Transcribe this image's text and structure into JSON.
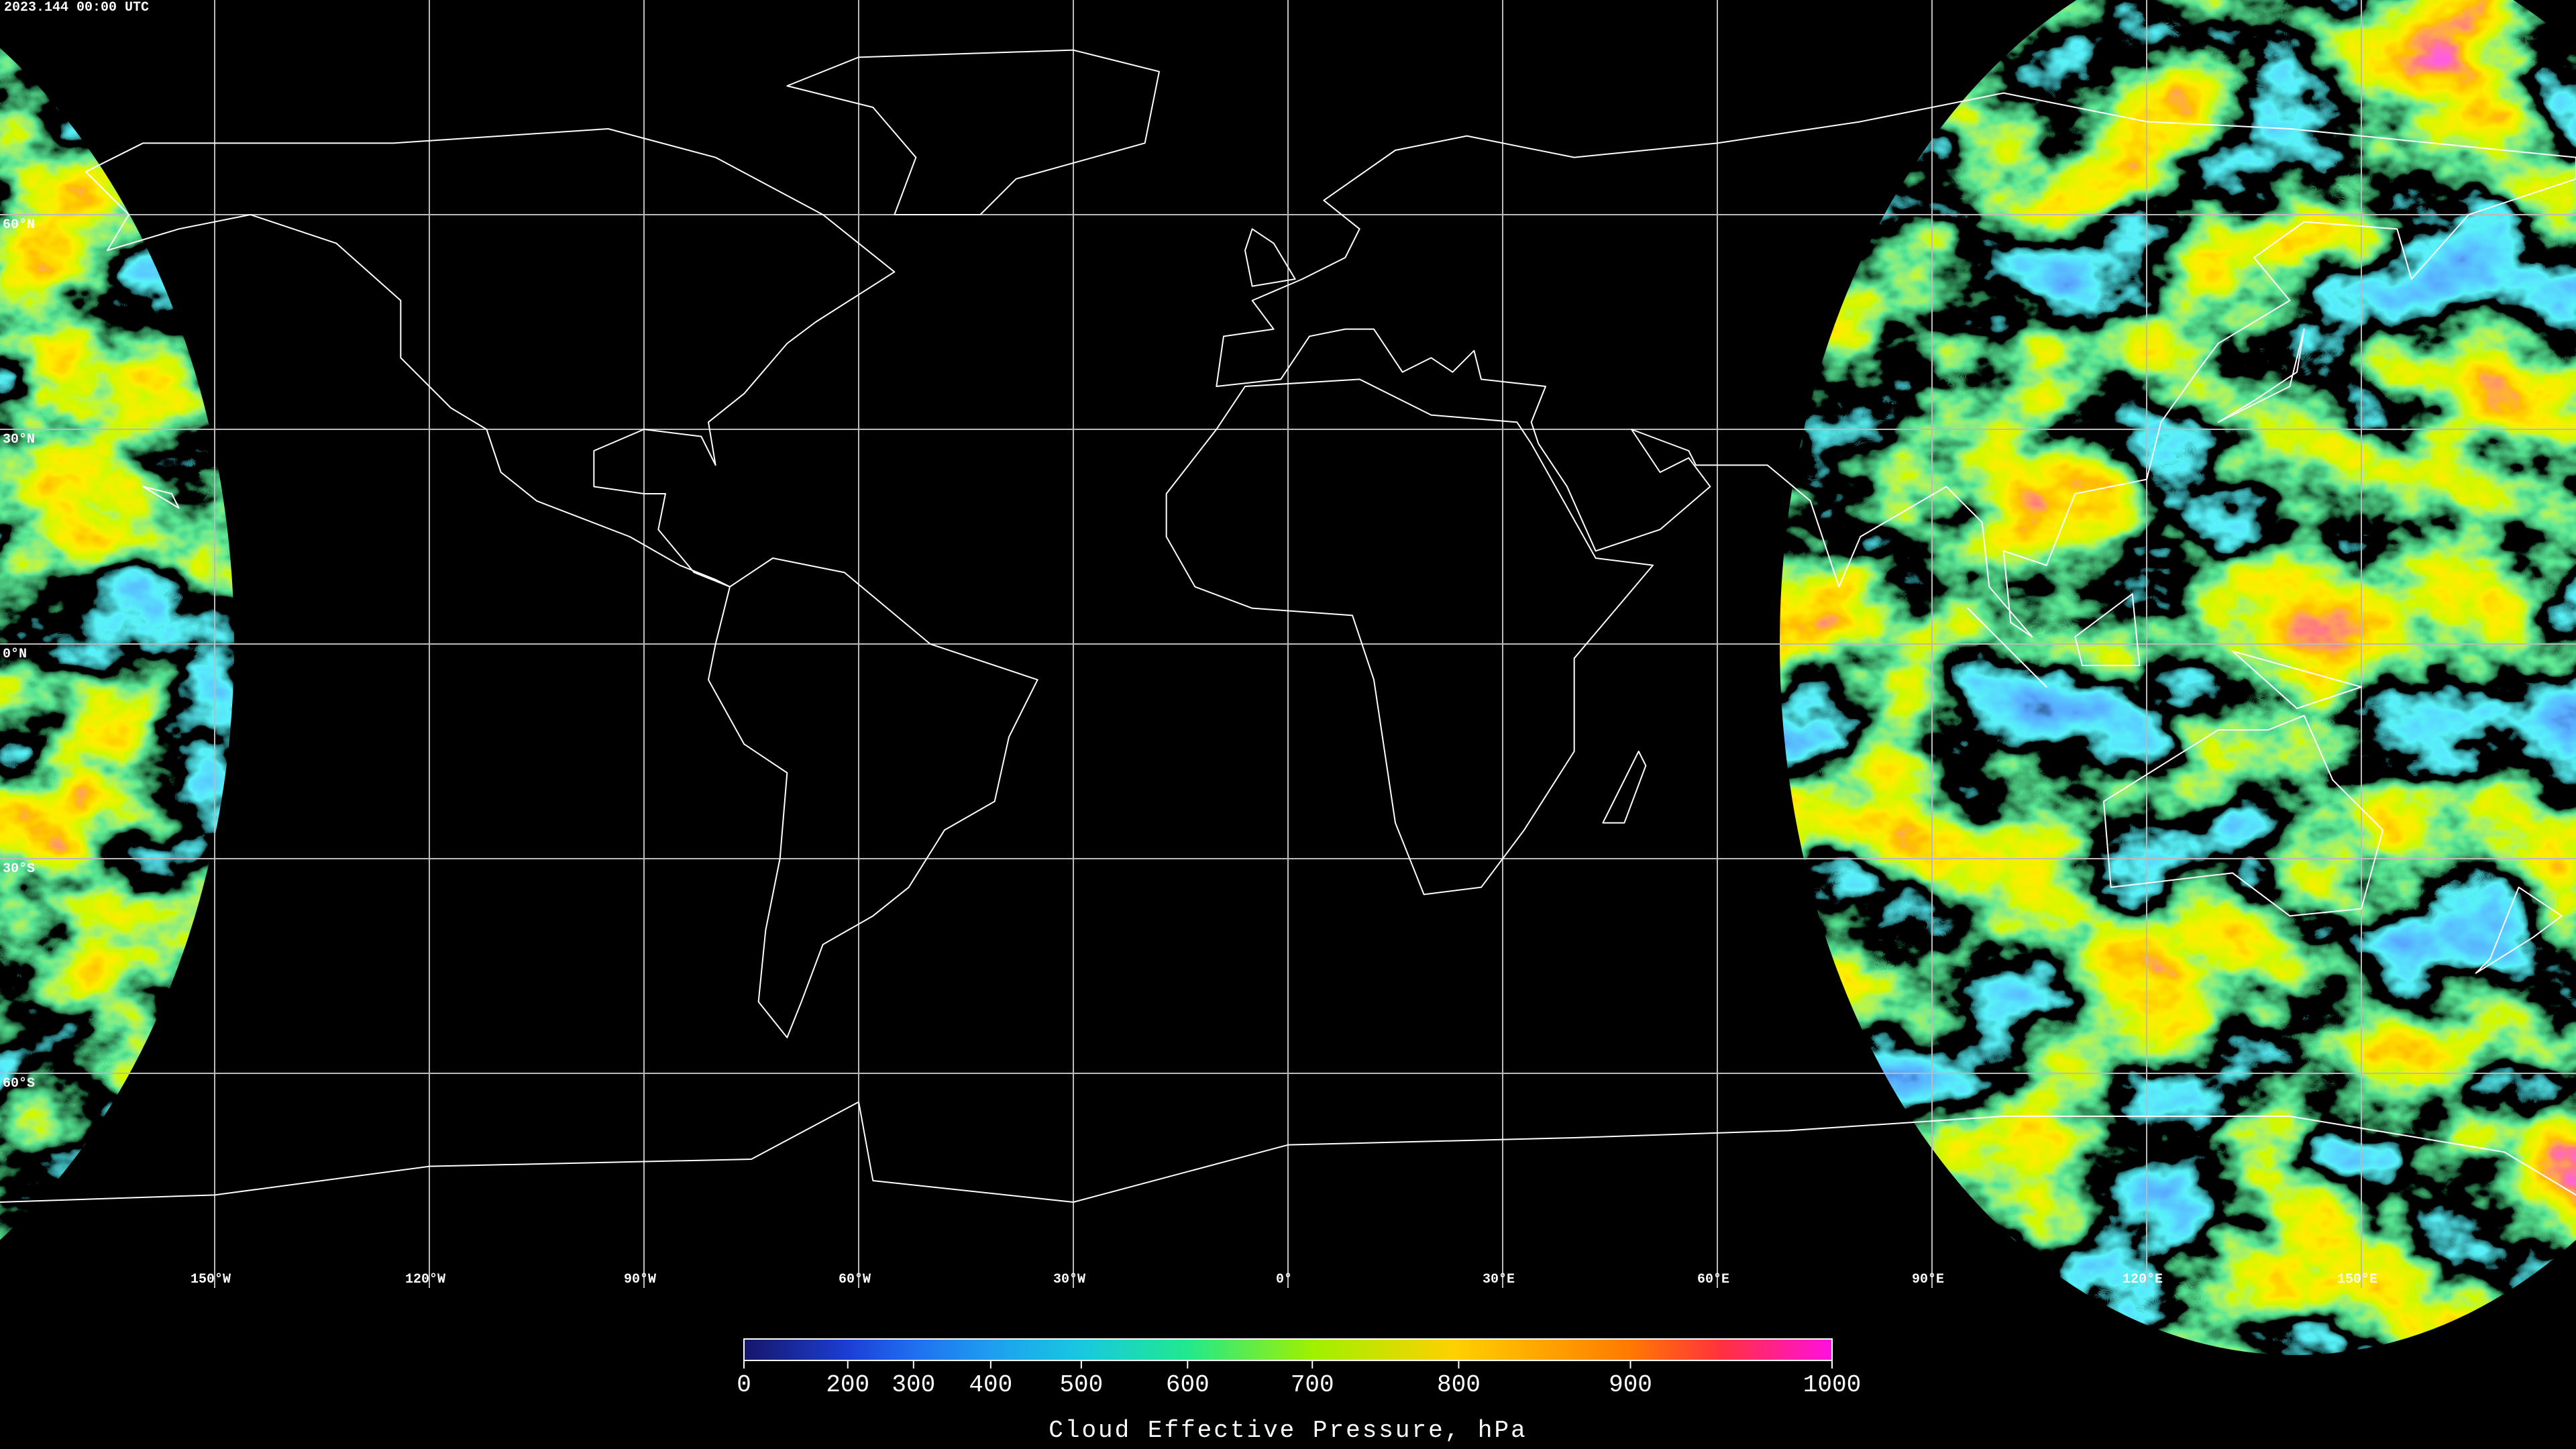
{
  "header": {
    "timestamp": "2023.144 00:00 UTC"
  },
  "map": {
    "xlim": [
      -180,
      180
    ],
    "ylim": [
      -90,
      90
    ],
    "grid": true,
    "xticks": [
      {
        "value": -150,
        "label": "150°W"
      },
      {
        "value": -120,
        "label": "120°W"
      },
      {
        "value": -90,
        "label": "90°W"
      },
      {
        "value": -60,
        "label": "60°W"
      },
      {
        "value": -30,
        "label": "30°W"
      },
      {
        "value": 0,
        "label": "0°"
      },
      {
        "value": 30,
        "label": "30°E"
      },
      {
        "value": 60,
        "label": "60°E"
      },
      {
        "value": 90,
        "label": "90°E"
      },
      {
        "value": 120,
        "label": "120°E"
      },
      {
        "value": 150,
        "label": "150°E"
      }
    ],
    "yticks": [
      {
        "value": 60,
        "label": "60°N"
      },
      {
        "value": 30,
        "label": "30°N"
      },
      {
        "value": 0,
        "label": "0°N"
      },
      {
        "value": -30,
        "label": "30°S"
      },
      {
        "value": -60,
        "label": "60°S"
      }
    ]
  },
  "colorbar": {
    "label": "Cloud Effective Pressure, hPa",
    "lim": [
      0,
      1000
    ],
    "ticks": [
      0,
      200,
      300,
      400,
      500,
      600,
      700,
      800,
      900,
      1000
    ]
  }
}
